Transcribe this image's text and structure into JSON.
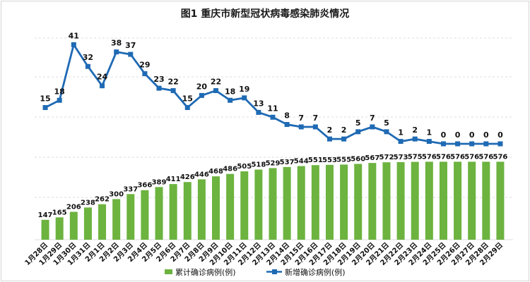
{
  "chart_data": {
    "type": "bar+line",
    "title": "图1   重庆市新型冠状病毒感染肺炎情况",
    "categories": [
      "1月28日",
      "1月29日",
      "1月30日",
      "1月31日",
      "2月1日",
      "2月2日",
      "2月3日",
      "2月4日",
      "2月5日",
      "2月6日",
      "2月7日",
      "2月8日",
      "2月9日",
      "2月10日",
      "2月11日",
      "2月12日",
      "2月13日",
      "2月14日",
      "2月15日",
      "2月16日",
      "2月17日",
      "2月18日",
      "2月19日",
      "2月20日",
      "2月21日",
      "2月22日",
      "2月23日",
      "2月24日",
      "2月25日",
      "2月26日",
      "2月27日",
      "2月28日",
      "2月29日"
    ],
    "series": [
      {
        "name": "累计确诊病例(例)",
        "type": "bar",
        "color": "#6cb33f",
        "values": [
          147,
          165,
          206,
          238,
          262,
          300,
          337,
          366,
          389,
          411,
          426,
          446,
          468,
          486,
          505,
          518,
          529,
          537,
          544,
          551,
          553,
          555,
          560,
          567,
          572,
          573,
          575,
          576,
          576,
          576,
          576,
          576,
          576
        ]
      },
      {
        "name": "新增确诊病例(例)",
        "type": "line",
        "color": "#1f6ab4",
        "values": [
          15,
          18,
          41,
          32,
          24,
          38,
          37,
          29,
          23,
          22,
          15,
          20,
          22,
          18,
          19,
          13,
          11,
          8,
          7,
          7,
          2,
          2,
          5,
          7,
          5,
          1,
          2,
          1,
          0,
          0,
          0,
          0,
          0
        ]
      }
    ],
    "grid": true,
    "legend": "bottom"
  }
}
